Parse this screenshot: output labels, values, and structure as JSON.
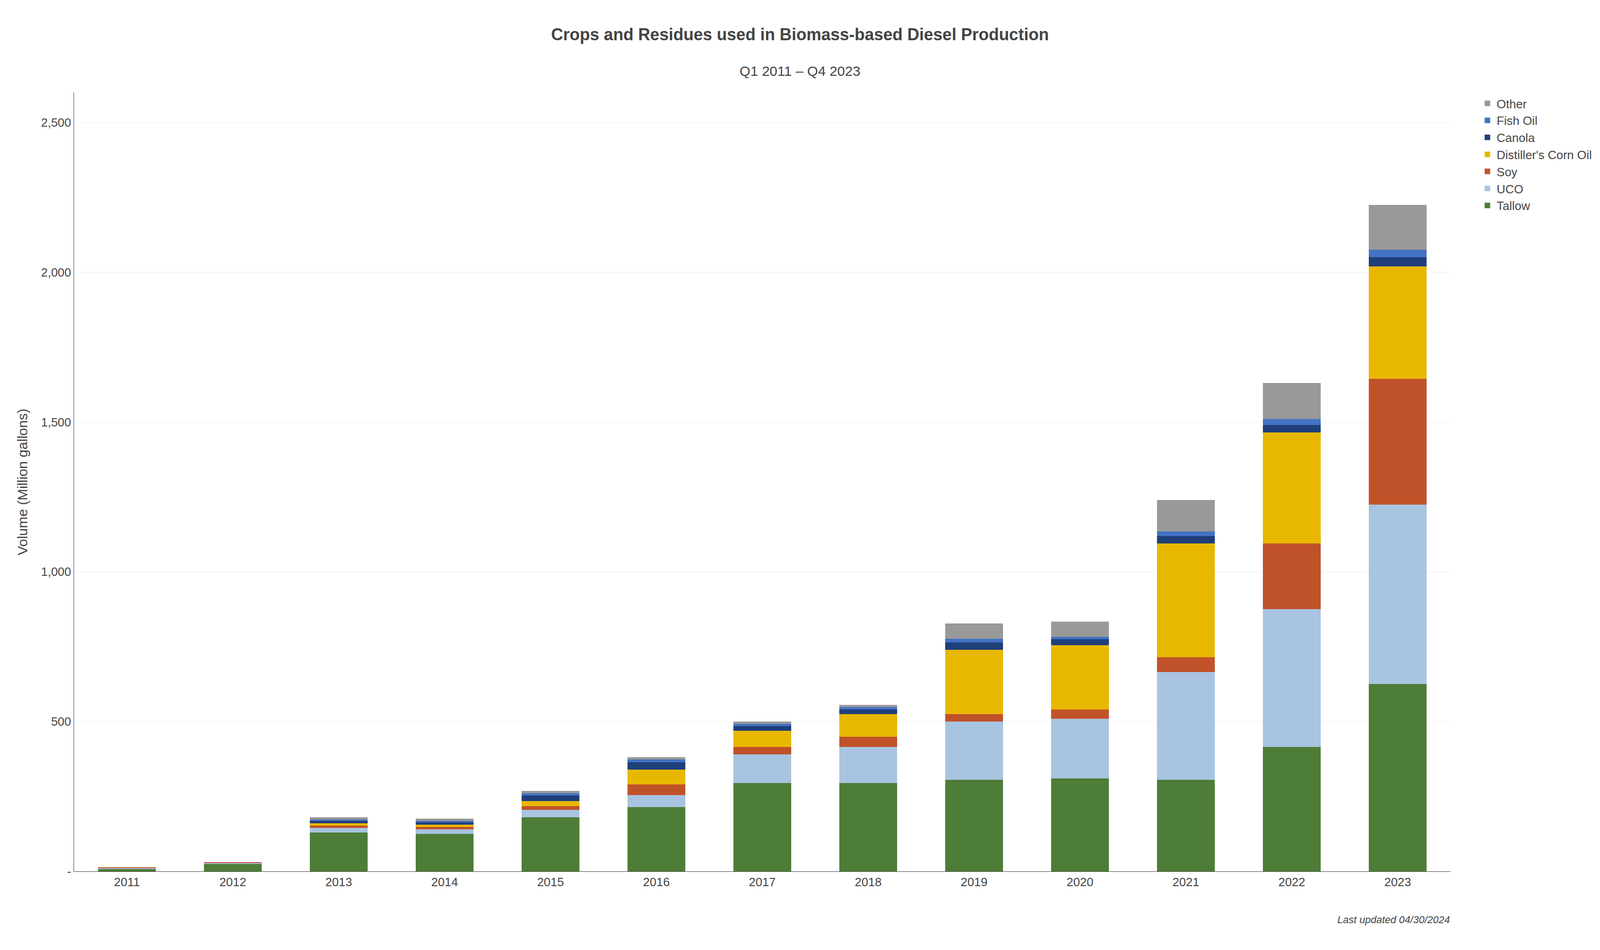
{
  "chart_data": {
    "type": "bar",
    "title": "Crops and Residues used in Biomass-based Diesel Production",
    "subtitle": "Q1 2011 – Q4 2023",
    "y_label": "Volume (Million gallons)",
    "annotations": [
      "Last updated 04/30/2024"
    ],
    "categories": [
      "2011",
      "2012",
      "2013",
      "2014",
      "2015",
      "2016",
      "2017",
      "2018",
      "2019",
      "2020",
      "2021",
      "2022",
      "2023"
    ],
    "series": [
      {
        "name": "Tallow",
        "color": "#4e7d37",
        "values": [
          8,
          25,
          130,
          125,
          180,
          215,
          295,
          295,
          305,
          310,
          305,
          415,
          625
        ]
      },
      {
        "name": "UCO",
        "color": "#a8c4e0",
        "values": [
          3,
          3,
          15,
          15,
          25,
          40,
          95,
          120,
          195,
          200,
          360,
          460,
          600
        ]
      },
      {
        "name": "Soy",
        "color": "#c0522a",
        "values": [
          2,
          2,
          8,
          8,
          12,
          35,
          25,
          35,
          25,
          30,
          50,
          220,
          420
        ]
      },
      {
        "name": "Distiller's Corn Oil",
        "color": "#e8b800",
        "values": [
          0,
          0,
          8,
          8,
          18,
          50,
          55,
          75,
          215,
          215,
          380,
          370,
          375
        ]
      },
      {
        "name": "Canola",
        "color": "#1f3f7a",
        "values": [
          0,
          0,
          8,
          8,
          18,
          25,
          15,
          15,
          25,
          20,
          25,
          25,
          30
        ]
      },
      {
        "name": "Fish Oil",
        "color": "#4472c4",
        "values": [
          0,
          0,
          4,
          4,
          8,
          8,
          8,
          8,
          12,
          8,
          15,
          20,
          25
        ]
      },
      {
        "name": "Other",
        "color": "#999999",
        "values": [
          0,
          0,
          8,
          8,
          8,
          8,
          8,
          8,
          50,
          50,
          105,
          120,
          150
        ]
      }
    ],
    "stacked": true,
    "ylim": [
      0,
      2600
    ],
    "yticks": [
      {
        "value": 0,
        "label": "-"
      },
      500,
      {
        "value": 1000,
        "label": "1,000"
      },
      {
        "value": 1500,
        "label": "1,500"
      },
      {
        "value": 2000,
        "label": "2,000"
      },
      {
        "value": 2500,
        "label": "2,500"
      }
    ],
    "grid": true,
    "legend": "upper right"
  }
}
